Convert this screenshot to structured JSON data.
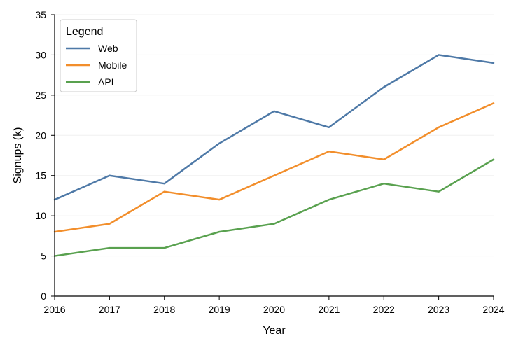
{
  "chart_data": {
    "type": "line",
    "title": "",
    "xlabel": "Year",
    "ylabel": "Signups (k)",
    "x": [
      2016,
      2017,
      2018,
      2019,
      2020,
      2021,
      2022,
      2023,
      2024
    ],
    "xlim": [
      2016,
      2024
    ],
    "ylim": [
      0,
      35
    ],
    "y_ticks": [
      0,
      5,
      10,
      15,
      20,
      25,
      30,
      35
    ],
    "grid": "horizontal",
    "legend": {
      "title": "Legend",
      "placement": "top-left"
    },
    "series": [
      {
        "name": "Web",
        "color": "#4e79a7",
        "values": [
          12,
          15,
          14,
          19,
          23,
          21,
          26,
          30,
          29
        ]
      },
      {
        "name": "Mobile",
        "color": "#f28e2b",
        "values": [
          8,
          9,
          13,
          12,
          15,
          18,
          17,
          21,
          24
        ]
      },
      {
        "name": "API",
        "color": "#59a14f",
        "values": [
          5,
          6,
          6,
          8,
          9,
          12,
          14,
          13,
          17
        ]
      }
    ]
  }
}
